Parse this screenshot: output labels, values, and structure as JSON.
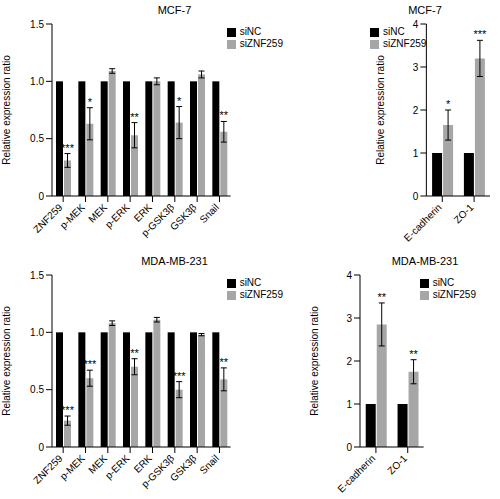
{
  "chart_data": [
    {
      "type": "bar",
      "title": "MCF-7",
      "y_label": "Relative expression ratio",
      "categories": [
        "ZNF259",
        "p-MEK",
        "MEK",
        "p-ERK",
        "ERK",
        "p-GSK3β",
        "GSK3β",
        "Snail"
      ],
      "series": [
        {
          "name": "siNC",
          "color": "#000000",
          "values": [
            1,
            1,
            1,
            1,
            1,
            1,
            1,
            1
          ]
        },
        {
          "name": "siZNF259",
          "color": "#a6a6a6",
          "values": [
            0.31,
            0.63,
            1.09,
            0.53,
            1.0,
            0.64,
            1.06,
            0.56
          ],
          "errors": [
            0.06,
            0.14,
            0.02,
            0.11,
            0.03,
            0.14,
            0.03,
            0.09
          ],
          "annotations": [
            "***",
            "*",
            null,
            "**",
            null,
            "*",
            null,
            "**"
          ]
        }
      ],
      "ylim": [
        0,
        1.5
      ],
      "yticks": [
        0,
        0.5,
        {
          "value": 1,
          "label": "1.0"
        },
        1.5
      ],
      "legend": "top-right"
    },
    {
      "type": "bar",
      "title": "MCF-7",
      "y_label": "Relative expression ratio",
      "categories": [
        "E-cadherin",
        "ZO-1"
      ],
      "series": [
        {
          "name": "siNC",
          "color": "#000000",
          "values": [
            1,
            1
          ]
        },
        {
          "name": "siZNF259",
          "color": "#a6a6a6",
          "values": [
            1.65,
            3.2
          ],
          "errors": [
            0.35,
            0.42
          ],
          "annotations": [
            "*",
            "***"
          ]
        }
      ],
      "ylim": [
        0,
        4
      ],
      "yticks": [
        0,
        1,
        2,
        3,
        4
      ],
      "legend": "top-left"
    },
    {
      "type": "bar",
      "title": "MDA-MB-231",
      "y_label": "Relative expression ratio",
      "categories": [
        "ZNF259",
        "p-MEK",
        "MEK",
        "p-ERK",
        "ERK",
        "p-GSK3β",
        "GSK3β",
        "Snail"
      ],
      "series": [
        {
          "name": "siNC",
          "color": "#000000",
          "values": [
            1,
            1,
            1,
            1,
            1,
            1,
            1,
            1
          ]
        },
        {
          "name": "siZNF259",
          "color": "#a6a6a6",
          "values": [
            0.23,
            0.6,
            1.08,
            0.7,
            1.11,
            0.5,
            0.98,
            0.59
          ],
          "errors": [
            0.04,
            0.07,
            0.02,
            0.07,
            0.02,
            0.07,
            0.01,
            0.1
          ],
          "annotations": [
            "***",
            "***",
            null,
            "**",
            null,
            "***",
            null,
            "**"
          ]
        }
      ],
      "ylim": [
        0,
        1.5
      ],
      "yticks": [
        0,
        0.5,
        {
          "value": 1,
          "label": "1.0"
        },
        1.5
      ],
      "legend": "top-right"
    },
    {
      "type": "bar",
      "title": "MDA-MB-231",
      "y_label": "Relative expression ratio",
      "categories": [
        "E-cadherin",
        "ZO-1"
      ],
      "series": [
        {
          "name": "siNC",
          "color": "#000000",
          "values": [
            1,
            1
          ]
        },
        {
          "name": "siZNF259",
          "color": "#a6a6a6",
          "values": [
            2.85,
            1.75
          ],
          "errors": [
            0.5,
            0.28
          ],
          "annotations": [
            "**",
            "**"
          ]
        }
      ],
      "ylim": [
        0,
        4
      ],
      "yticks": [
        0,
        1,
        2,
        3,
        4
      ],
      "legend": "top-right"
    }
  ]
}
